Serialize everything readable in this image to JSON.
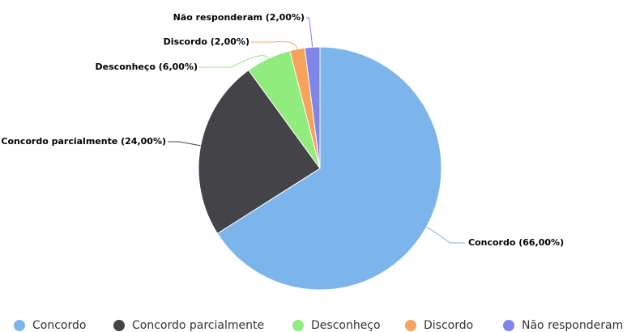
{
  "chart_data": {
    "type": "pie",
    "categories": [
      "Concordo",
      "Concordo parcialmente",
      "Desconheço",
      "Discordo",
      "Não responderam"
    ],
    "values": [
      66,
      24,
      6,
      2,
      2
    ],
    "value_labels": [
      "Concordo (66,00%)",
      "Concordo parcialmente (24,00%)",
      "Desconheço (6,00%)",
      "Discordo (2,00%)",
      "Não responderam (2,00%)"
    ],
    "colors": [
      "#7cb5ec",
      "#434348",
      "#90ed7d",
      "#f7a35c",
      "#8085e9"
    ],
    "legend": "bottom"
  }
}
